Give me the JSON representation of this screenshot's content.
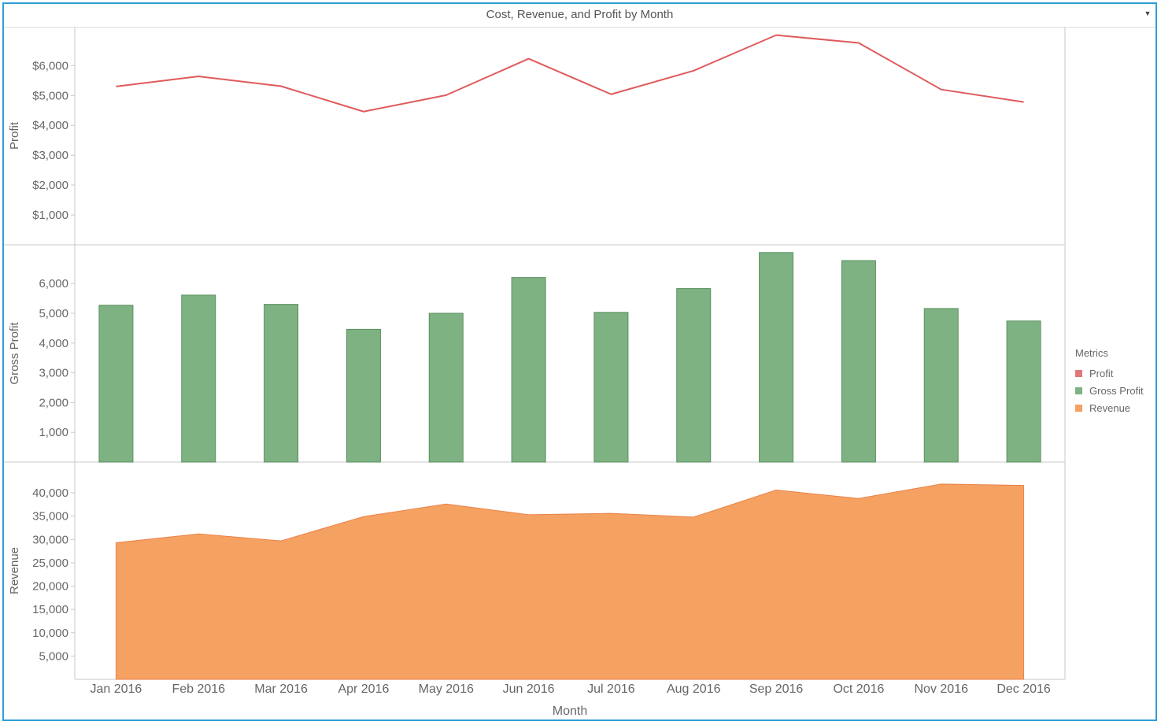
{
  "title": "Cost, Revenue, and Profit by Month",
  "legend": {
    "title": "Metrics",
    "items": [
      {
        "label": "Profit",
        "color": "#e0797b"
      },
      {
        "label": "Gross Profit",
        "color": "#7fb283"
      },
      {
        "label": "Revenue",
        "color": "#f5a162"
      }
    ]
  },
  "chart_data": [
    {
      "type": "line",
      "ylabel": "Profit",
      "xlabel": "Month",
      "categories": [
        "Jan 2016",
        "Feb 2016",
        "Mar 2016",
        "Apr 2016",
        "May 2016",
        "Jun 2016",
        "Jul 2016",
        "Aug 2016",
        "Sep 2016",
        "Oct 2016",
        "Nov 2016",
        "Dec 2016"
      ],
      "values": [
        5300,
        5640,
        5310,
        4460,
        5010,
        6230,
        5040,
        5830,
        7020,
        6760,
        5200,
        4780
      ],
      "ylim": [
        0,
        7300
      ],
      "yticks": [
        1000,
        2000,
        3000,
        4000,
        5000,
        6000
      ],
      "ytick_labels": [
        "$1,000",
        "$2,000",
        "$3,000",
        "$4,000",
        "$5,000",
        "$6,000"
      ],
      "color": "#e05a5c"
    },
    {
      "type": "bar",
      "ylabel": "Gross Profit",
      "categories": [
        "Jan 2016",
        "Feb 2016",
        "Mar 2016",
        "Apr 2016",
        "May 2016",
        "Jun 2016",
        "Jul 2016",
        "Aug 2016",
        "Sep 2016",
        "Oct 2016",
        "Nov 2016",
        "Dec 2016"
      ],
      "values": [
        5270,
        5610,
        5300,
        4460,
        5000,
        6200,
        5030,
        5830,
        7040,
        6770,
        5160,
        4740
      ],
      "ylim": [
        0,
        7300
      ],
      "yticks": [
        1000,
        2000,
        3000,
        4000,
        5000,
        6000
      ],
      "ytick_labels": [
        "1,000",
        "2,000",
        "3,000",
        "4,000",
        "5,000",
        "6,000"
      ],
      "color": "#7fb283"
    },
    {
      "type": "area",
      "ylabel": "Revenue",
      "xlabel": "Month",
      "categories": [
        "Jan 2016",
        "Feb 2016",
        "Mar 2016",
        "Apr 2016",
        "May 2016",
        "Jun 2016",
        "Jul 2016",
        "Aug 2016",
        "Sep 2016",
        "Oct 2016",
        "Nov 2016",
        "Dec 2016"
      ],
      "values": [
        29300,
        31200,
        29700,
        34900,
        37600,
        35300,
        35600,
        34800,
        40600,
        38800,
        41900,
        41600
      ],
      "ylim": [
        0,
        46600
      ],
      "yticks": [
        5000,
        10000,
        15000,
        20000,
        25000,
        30000,
        35000,
        40000
      ],
      "ytick_labels": [
        "5,000",
        "10,000",
        "15,000",
        "20,000",
        "25,000",
        "30,000",
        "35,000",
        "40,000"
      ],
      "color": "#f5a162"
    }
  ]
}
